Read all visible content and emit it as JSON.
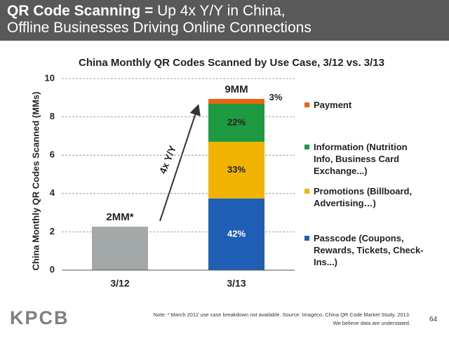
{
  "header": {
    "title_lead": "QR Code Scanning =",
    "title_rest": " Up 4x Y/Y in China,",
    "title_line2": "Offline Businesses Driving Online Connections"
  },
  "chart_data": {
    "type": "stacked_bar",
    "title": "China Monthly QR Codes Scanned by Use Case, 3/12 vs. 3/13",
    "y_label": "China Monthly QR Codes Scanned (MMs)",
    "categories": [
      "3/12",
      "3/13"
    ],
    "series": [
      {
        "color": "#a3a8a8",
        "values": [
          2.27,
          null
        ]
      },
      {
        "name": "Passcode (Coupons, Rewards, Tickets, Check-Ins...)",
        "color": "#1f5fb5",
        "values": [
          null,
          3.74
        ]
      },
      {
        "name": "Promotions (Billboard, Advertising…)",
        "color": "#f0b400",
        "values": [
          null,
          2.96
        ]
      },
      {
        "name": "Information (Nutrition Info, Business Card Exchange...)",
        "color": "#1e9a40",
        "values": [
          null,
          1.98
        ]
      },
      {
        "name": "Payment",
        "color": "#e8650f",
        "values": [
          null,
          0.26
        ]
      }
    ],
    "segment_labels": [
      "42%",
      "33%",
      "22%",
      "3%"
    ],
    "total_labels": [
      "2MM*",
      "9MM"
    ],
    "arrow_label": "4x Y/Y",
    "ylim": [
      0,
      10
    ],
    "yticks": [
      0,
      2,
      4,
      6,
      8,
      10
    ],
    "grid": true
  },
  "footer": {
    "logo": "KPCB",
    "note": "Note: * March 2012 use case breakdown not available. Source: Imageco, China QR Code Market Study, 2013.",
    "note2": "We believe data are understated.",
    "page": "64"
  }
}
